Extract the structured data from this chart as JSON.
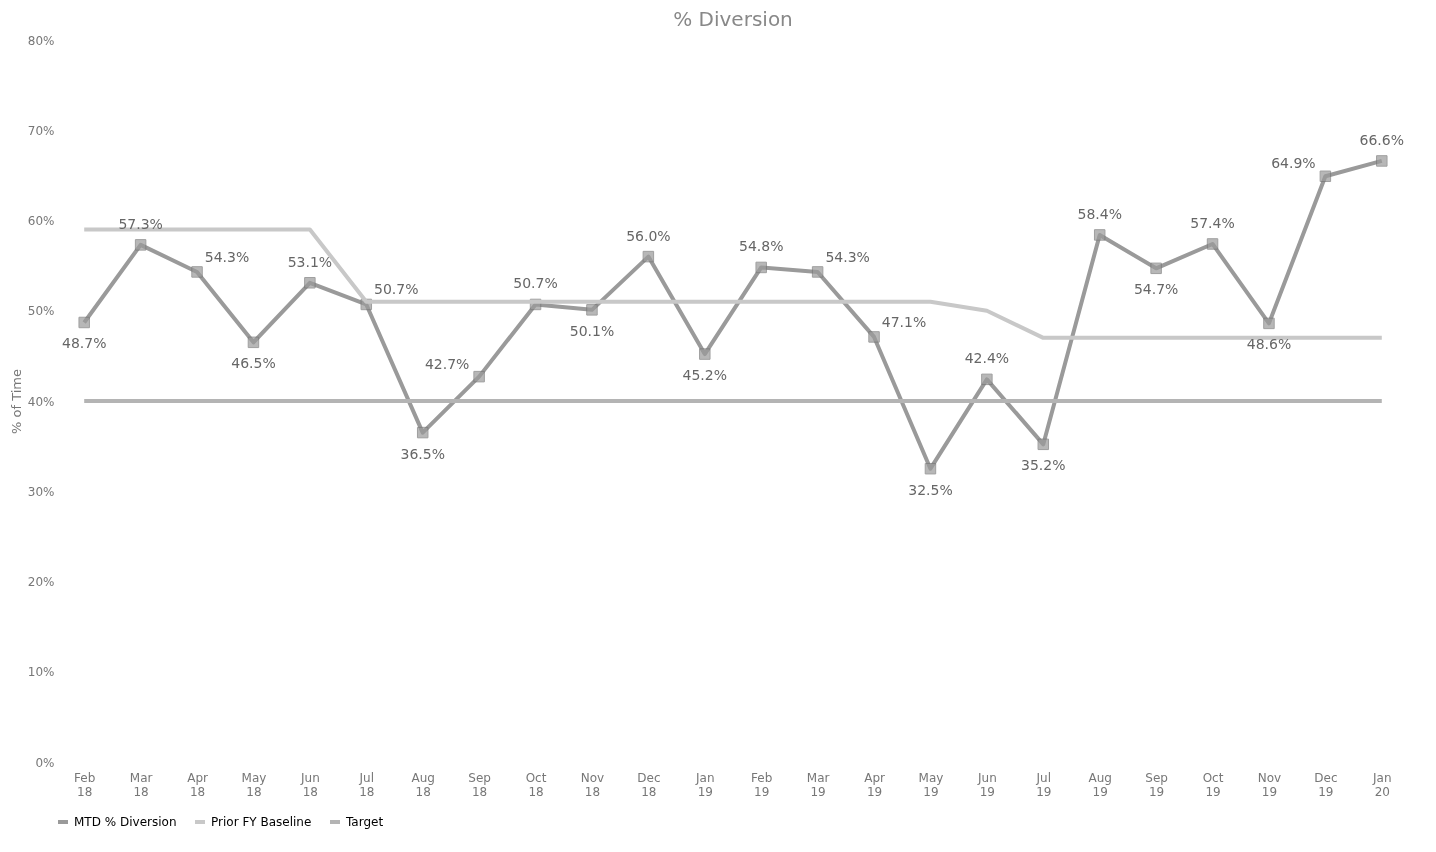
{
  "chart_data": {
    "type": "line",
    "title": "% Diversion",
    "ylabel": "% of Time",
    "categories": [
      "Feb 18",
      "Mar 18",
      "Apr 18",
      "May 18",
      "Jun 18",
      "Jul 18",
      "Aug 18",
      "Sep 18",
      "Oct 18",
      "Nov 18",
      "Dec 18",
      "Jan 19",
      "Feb 19",
      "Mar 19",
      "Apr 19",
      "May 19",
      "Jun 19",
      "Jul 19",
      "Aug 19",
      "Sep 19",
      "Oct 19",
      "Nov 19",
      "Dec 19",
      "Jan 20"
    ],
    "series": [
      {
        "name": "MTD % Diversion",
        "color": "#9a9a9a",
        "marker": "square",
        "values": [
          48.7,
          57.3,
          54.3,
          46.5,
          53.1,
          50.7,
          36.5,
          42.7,
          50.7,
          50.1,
          56.0,
          45.2,
          54.8,
          54.3,
          47.1,
          32.5,
          42.4,
          35.2,
          58.4,
          54.7,
          57.4,
          48.6,
          64.9,
          66.6
        ],
        "value_labels": [
          "48.7%",
          "57.3%",
          "54.3%",
          "46.5%",
          "53.1%",
          "50.7%",
          "36.5%",
          "42.7%",
          "50.7%",
          "50.1%",
          "56.0%",
          "45.2%",
          "54.8%",
          "54.3%",
          "47.1%",
          "32.5%",
          "42.4%",
          "35.2%",
          "58.4%",
          "54.7%",
          "57.4%",
          "48.6%",
          "64.9%",
          "66.6%"
        ]
      },
      {
        "name": "Prior FY Baseline",
        "color": "#c8c8c8",
        "values": [
          59,
          59,
          59,
          59,
          59,
          51,
          51,
          51,
          51,
          51,
          51,
          51,
          51,
          51,
          51,
          51,
          50,
          47,
          47,
          47,
          47,
          47,
          47,
          47
        ]
      },
      {
        "name": "Target",
        "color": "#b4b4b4",
        "values": [
          40,
          40,
          40,
          40,
          40,
          40,
          40,
          40,
          40,
          40,
          40,
          40,
          40,
          40,
          40,
          40,
          40,
          40,
          40,
          40,
          40,
          40,
          40,
          40
        ]
      }
    ],
    "ylim": [
      0,
      80
    ],
    "yticks": [
      {
        "value": 0,
        "label": "0%"
      },
      {
        "value": 10,
        "label": "10%"
      },
      {
        "value": 20,
        "label": "20%"
      },
      {
        "value": 30,
        "label": "30%"
      },
      {
        "value": 40,
        "label": "40%"
      },
      {
        "value": 50,
        "label": "50%"
      },
      {
        "value": 60,
        "label": "60%"
      },
      {
        "value": 70,
        "label": "70%"
      },
      {
        "value": 80,
        "label": "80%"
      }
    ],
    "grid": false,
    "legend": "bottom",
    "line_style": "solid"
  }
}
